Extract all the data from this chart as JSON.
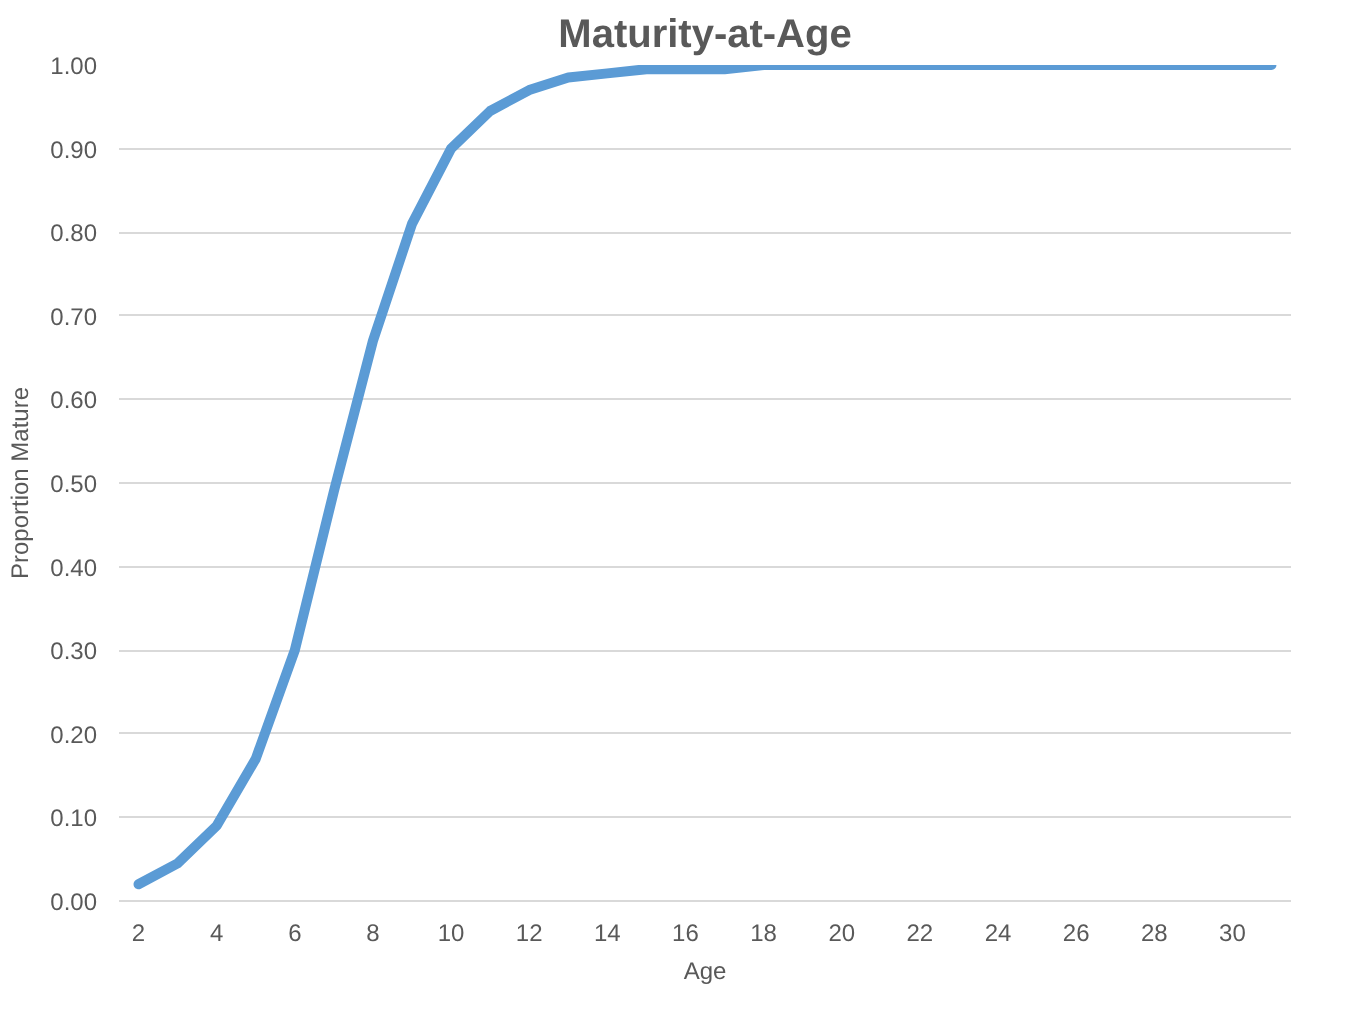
{
  "chart_data": {
    "type": "line",
    "title": "Maturity-at-Age",
    "xlabel": "Age",
    "ylabel": "Proportion Mature",
    "x": [
      2,
      3,
      4,
      5,
      6,
      7,
      8,
      9,
      10,
      11,
      12,
      13,
      14,
      15,
      16,
      17,
      18,
      19,
      20,
      21,
      22,
      23,
      24,
      25,
      26,
      27,
      28,
      29,
      30,
      31
    ],
    "series": [
      {
        "color": "#5b9bd5",
        "values": [
          0.02,
          0.045,
          0.09,
          0.17,
          0.3,
          0.49,
          0.67,
          0.81,
          0.9,
          0.945,
          0.97,
          0.985,
          0.99,
          0.995,
          0.995,
          0.995,
          1.0,
          1.0,
          1.0,
          1.0,
          1.0,
          1.0,
          1.0,
          1.0,
          1.0,
          1.0,
          1.0,
          1.0,
          1.0,
          1.0
        ]
      }
    ],
    "xlim": [
      1.5,
      31.5
    ],
    "xticks": [
      2,
      4,
      6,
      8,
      10,
      12,
      14,
      16,
      18,
      20,
      22,
      24,
      26,
      28,
      30
    ],
    "ylim": [
      0,
      1
    ],
    "yticks": [
      {
        "value": 0,
        "label": "0.00"
      },
      {
        "value": 0.1,
        "label": "0.10"
      },
      {
        "value": 0.2,
        "label": "0.20"
      },
      {
        "value": 0.3,
        "label": "0.30"
      },
      {
        "value": 0.4,
        "label": "0.40"
      },
      {
        "value": 0.5,
        "label": "0.50"
      },
      {
        "value": 0.6,
        "label": "0.60"
      },
      {
        "value": 0.7,
        "label": "0.70"
      },
      {
        "value": 0.8,
        "label": "0.80"
      },
      {
        "value": 0.9,
        "label": "0.90"
      },
      {
        "value": 1,
        "label": "1.00"
      }
    ],
    "grid": "y"
  }
}
